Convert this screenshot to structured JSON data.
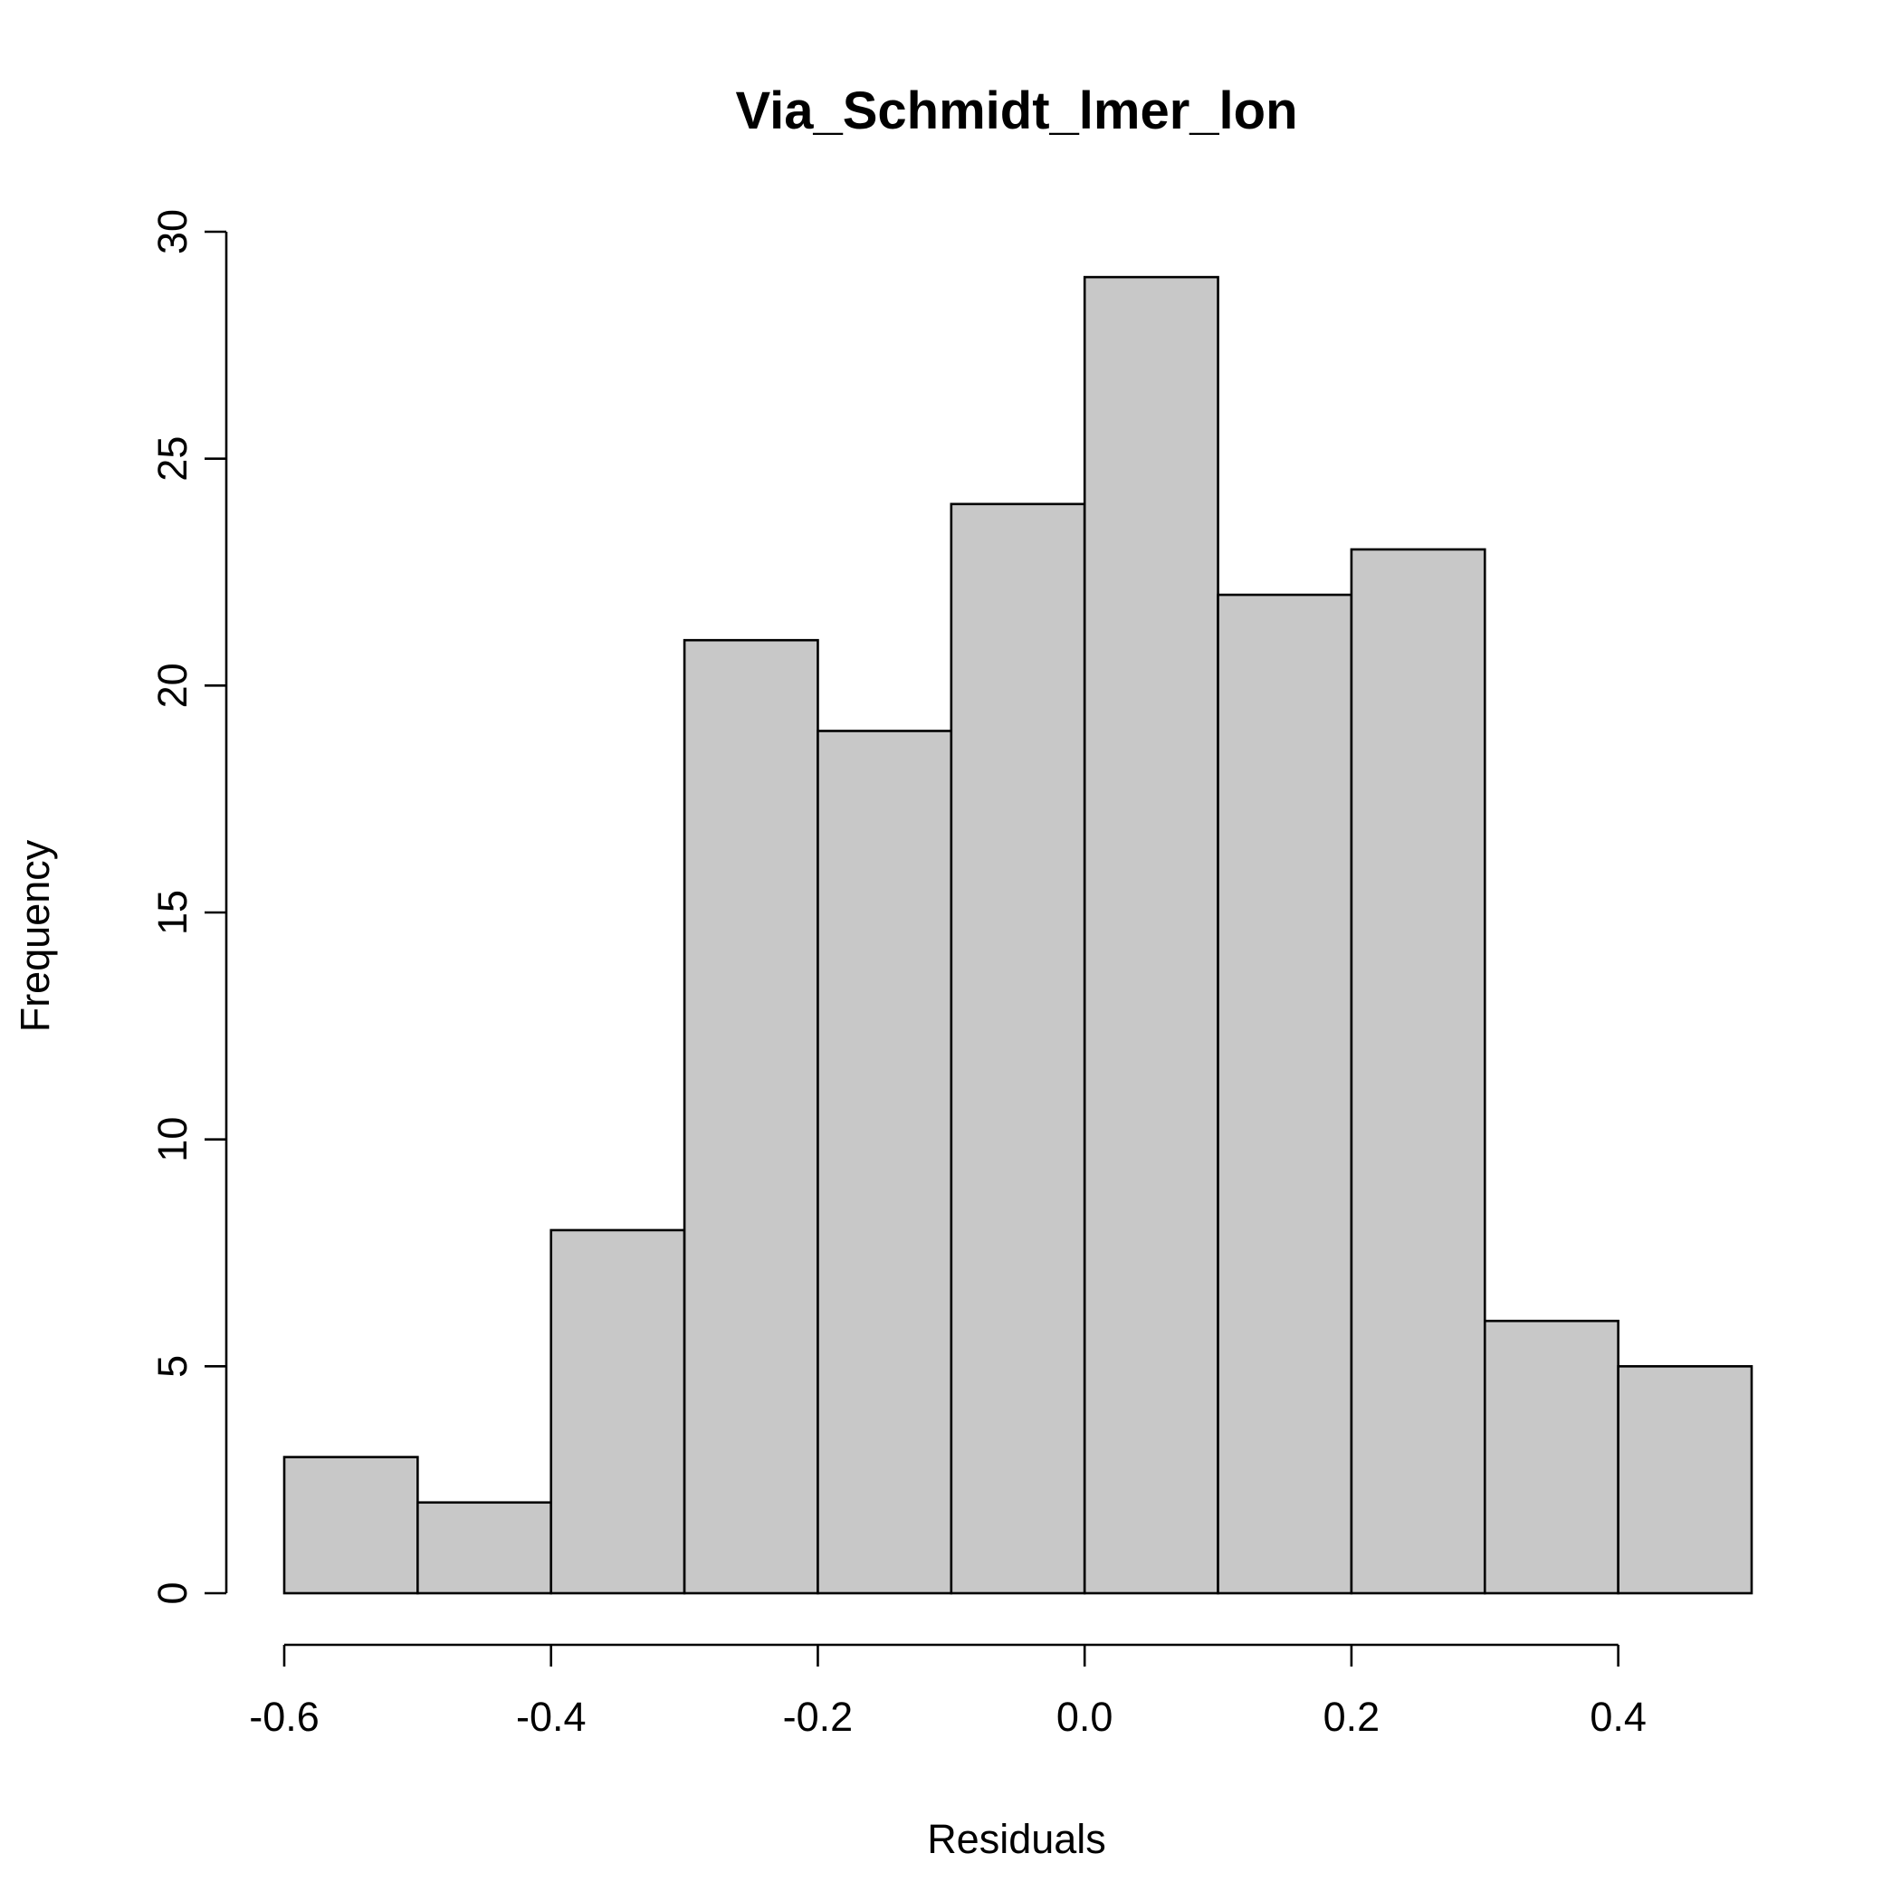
{
  "chart_data": {
    "type": "bar",
    "title": "Via_Schmidt_lmer_lon",
    "xlabel": "Residuals",
    "ylabel": "Frequency",
    "bins": [
      {
        "from": -0.6,
        "to": -0.5,
        "count": 3
      },
      {
        "from": -0.5,
        "to": -0.4,
        "count": 2
      },
      {
        "from": -0.4,
        "to": -0.3,
        "count": 8
      },
      {
        "from": -0.3,
        "to": -0.2,
        "count": 21
      },
      {
        "from": -0.2,
        "to": -0.1,
        "count": 19
      },
      {
        "from": -0.1,
        "to": 0.0,
        "count": 24
      },
      {
        "from": 0.0,
        "to": 0.1,
        "count": 29
      },
      {
        "from": 0.1,
        "to": 0.2,
        "count": 22
      },
      {
        "from": 0.2,
        "to": 0.3,
        "count": 23
      },
      {
        "from": 0.3,
        "to": 0.4,
        "count": 6
      },
      {
        "from": 0.4,
        "to": 0.5,
        "count": 5
      }
    ],
    "xlim": [
      -0.6,
      0.5
    ],
    "ylim": [
      0,
      30
    ],
    "x_ticks": [
      -0.6,
      -0.4,
      -0.2,
      0.0,
      0.2,
      0.4
    ],
    "x_tick_labels": [
      "-0.6",
      "-0.4",
      "-0.2",
      "0.0",
      "0.2",
      "0.4"
    ],
    "y_ticks": [
      0,
      5,
      10,
      15,
      20,
      25,
      30
    ],
    "y_tick_labels": [
      "0",
      "5",
      "10",
      "15",
      "20",
      "25",
      "30"
    ],
    "bar_color": "#c8c8c8",
    "grid": false,
    "legend": "none"
  }
}
